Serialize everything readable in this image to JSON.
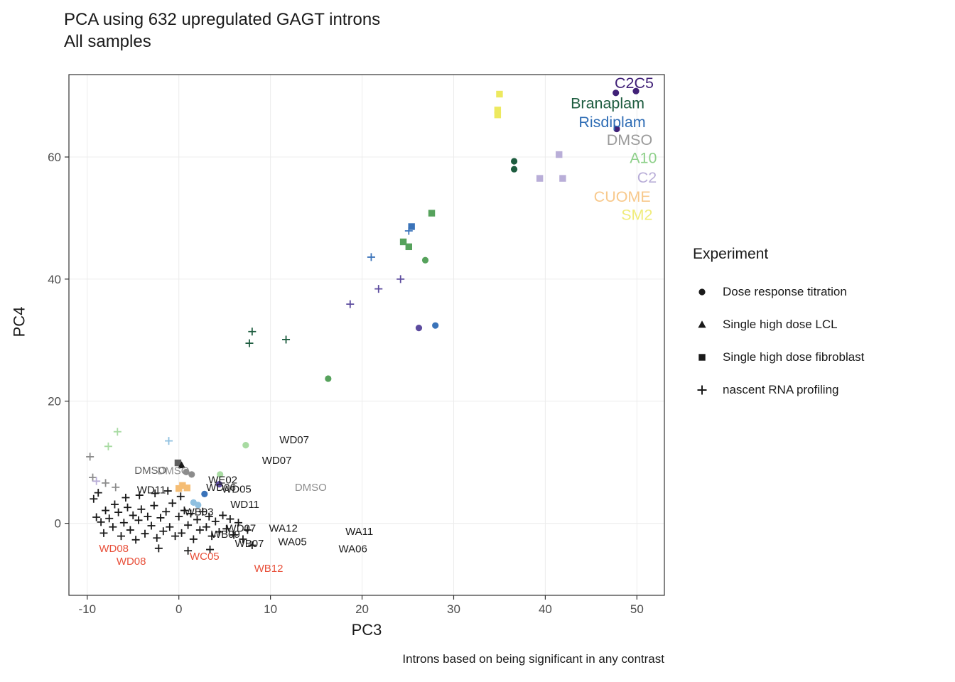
{
  "title": "PCA using 632 upregulated GAGT introns",
  "subtitle": "All samples",
  "caption": "Introns based on being significant in any contrast",
  "chart_data": {
    "type": "scatter",
    "xlabel": "PC3",
    "ylabel": "PC4",
    "xlim": [
      -12,
      53
    ],
    "ylim": [
      -11.8,
      73.5
    ],
    "xticks": [
      -10,
      0,
      10,
      20,
      30,
      40,
      50
    ],
    "yticks": [
      0,
      20,
      40,
      60
    ],
    "grid": true,
    "legend": {
      "title": "Experiment",
      "position": "right",
      "items": [
        {
          "shape": "circle",
          "label": "Dose response titration"
        },
        {
          "shape": "triangle",
          "label": "Single high dose LCL"
        },
        {
          "shape": "square",
          "label": "Single high dose fibroblast"
        },
        {
          "shape": "plus",
          "label": "nascent RNA profiling"
        }
      ]
    },
    "palette": {
      "black": "#1a1a1a",
      "gray": "#8c8c8c",
      "darkgray": "#5f5f5f",
      "red": "#e8503a",
      "midgreen": "#56a25c",
      "darkgreen": "#1d5c3f",
      "lightgreen": "#a8dba2",
      "blue": "#3a73b9",
      "steel": "#8fc0e0",
      "indigo": "#5c4b9e",
      "darkpurple": "#402077",
      "lightpurple": "#b9aed8",
      "orange": "#f5bd74",
      "yellow": "#ede95f"
    },
    "group_labels": [
      {
        "text": "C2C5",
        "x": 49.7,
        "y": 72.1,
        "color": "#402077"
      },
      {
        "text": "Branaplam",
        "x": 46.8,
        "y": 68.8,
        "color": "#1d5c3f"
      },
      {
        "text": "Risdiplam",
        "x": 47.3,
        "y": 65.7,
        "color": "#2f6db5"
      },
      {
        "text": "DMSO",
        "x": 49.2,
        "y": 62.8,
        "color": "#9b9b9b"
      },
      {
        "text": "A10",
        "x": 50.7,
        "y": 59.8,
        "color": "#8ed08a"
      },
      {
        "text": "C2",
        "x": 51.1,
        "y": 56.6,
        "color": "#b9aed8"
      },
      {
        "text": "CUOME",
        "x": 48.4,
        "y": 53.5,
        "color": "#f8c98c"
      },
      {
        "text": "SM2",
        "x": 50.0,
        "y": 50.5,
        "color": "#f0ec7a"
      }
    ],
    "point_labels": [
      {
        "text": "WD07",
        "x": 12.6,
        "y": 13.7,
        "color": "black"
      },
      {
        "text": "WD07",
        "x": 10.7,
        "y": 10.3,
        "color": "black"
      },
      {
        "text": "DMSO",
        "x": 14.4,
        "y": 5.9,
        "color": "gray"
      },
      {
        "text": "DMSO",
        "x": -3.1,
        "y": 8.7,
        "color": "darkgray"
      },
      {
        "text": "DMSO",
        "x": -0.6,
        "y": 8.6,
        "color": "gray"
      },
      {
        "text": "WE02",
        "x": 4.8,
        "y": 7.1,
        "color": "black"
      },
      {
        "text": "WD06",
        "x": 4.6,
        "y": 5.9,
        "color": "black"
      },
      {
        "text": "WD05",
        "x": 6.3,
        "y": 5.6,
        "color": "black"
      },
      {
        "text": "WD11",
        "x": -3.0,
        "y": 5.5,
        "color": "black"
      },
      {
        "text": "WD11",
        "x": 7.2,
        "y": 3.1,
        "color": "black"
      },
      {
        "text": "WB03",
        "x": 2.2,
        "y": 1.9,
        "color": "black"
      },
      {
        "text": "WD07",
        "x": 6.8,
        "y": -0.8,
        "color": "black"
      },
      {
        "text": "WA12",
        "x": 11.4,
        "y": -0.8,
        "color": "black"
      },
      {
        "text": "WA11",
        "x": 19.7,
        "y": -1.3,
        "color": "black"
      },
      {
        "text": "WB09",
        "x": 5.1,
        "y": -1.8,
        "color": "black"
      },
      {
        "text": "WA05",
        "x": 12.4,
        "y": -3.0,
        "color": "black"
      },
      {
        "text": "WB07",
        "x": 7.7,
        "y": -3.3,
        "color": "black"
      },
      {
        "text": "WA06",
        "x": 19.0,
        "y": -4.2,
        "color": "black"
      },
      {
        "text": "WB12",
        "x": 9.8,
        "y": -7.4,
        "color": "red"
      },
      {
        "text": "WD08",
        "x": -7.1,
        "y": -4.1,
        "color": "red"
      },
      {
        "text": "WD08",
        "x": -5.2,
        "y": -6.2,
        "color": "red"
      },
      {
        "text": "WC05",
        "x": 2.8,
        "y": -5.4,
        "color": "red"
      }
    ],
    "points": [
      {
        "x": 35.0,
        "y": 70.3,
        "shape": "square",
        "color": "yellow"
      },
      {
        "x": 34.8,
        "y": 67.7,
        "shape": "square",
        "color": "yellow"
      },
      {
        "x": 34.8,
        "y": 66.9,
        "shape": "square",
        "color": "yellow"
      },
      {
        "x": 47.7,
        "y": 70.5,
        "shape": "circle",
        "color": "darkpurple"
      },
      {
        "x": 49.9,
        "y": 70.8,
        "shape": "circle",
        "color": "darkpurple"
      },
      {
        "x": 47.8,
        "y": 64.6,
        "shape": "circle",
        "color": "darkpurple"
      },
      {
        "x": 36.6,
        "y": 59.3,
        "shape": "circle",
        "color": "darkgreen"
      },
      {
        "x": 36.6,
        "y": 58.0,
        "shape": "circle",
        "color": "darkgreen"
      },
      {
        "x": 39.4,
        "y": 56.5,
        "shape": "square",
        "color": "lightpurple"
      },
      {
        "x": 41.5,
        "y": 60.4,
        "shape": "square",
        "color": "lightpurple"
      },
      {
        "x": 41.9,
        "y": 56.5,
        "shape": "square",
        "color": "lightpurple"
      },
      {
        "x": 27.6,
        "y": 50.8,
        "shape": "square",
        "color": "midgreen"
      },
      {
        "x": 24.5,
        "y": 46.1,
        "shape": "square",
        "color": "midgreen"
      },
      {
        "x": 25.1,
        "y": 45.3,
        "shape": "square",
        "color": "midgreen"
      },
      {
        "x": 26.9,
        "y": 43.1,
        "shape": "circle",
        "color": "midgreen"
      },
      {
        "x": 16.3,
        "y": 23.7,
        "shape": "circle",
        "color": "midgreen"
      },
      {
        "x": 21.0,
        "y": 43.6,
        "shape": "plus",
        "color": "blue"
      },
      {
        "x": 25.1,
        "y": 47.9,
        "shape": "plus",
        "color": "blue"
      },
      {
        "x": 25.4,
        "y": 48.6,
        "shape": "square",
        "color": "blue"
      },
      {
        "x": 18.7,
        "y": 35.9,
        "shape": "plus",
        "color": "indigo"
      },
      {
        "x": 21.8,
        "y": 38.4,
        "shape": "plus",
        "color": "indigo"
      },
      {
        "x": 24.2,
        "y": 40.0,
        "shape": "plus",
        "color": "indigo"
      },
      {
        "x": 26.2,
        "y": 32.0,
        "shape": "circle",
        "color": "indigo"
      },
      {
        "x": 28.0,
        "y": 32.4,
        "shape": "circle",
        "color": "blue"
      },
      {
        "x": 7.7,
        "y": 29.5,
        "shape": "plus",
        "color": "darkgreen"
      },
      {
        "x": 8.0,
        "y": 31.4,
        "shape": "plus",
        "color": "darkgreen"
      },
      {
        "x": 11.7,
        "y": 30.1,
        "shape": "plus",
        "color": "darkgreen"
      },
      {
        "x": -6.7,
        "y": 15.0,
        "shape": "plus",
        "color": "lightgreen"
      },
      {
        "x": -7.7,
        "y": 12.6,
        "shape": "plus",
        "color": "lightgreen"
      },
      {
        "x": -1.1,
        "y": 13.5,
        "shape": "plus",
        "color": "steel"
      },
      {
        "x": -9.7,
        "y": 10.9,
        "shape": "plus",
        "color": "gray"
      },
      {
        "x": -9.4,
        "y": 7.5,
        "shape": "plus",
        "color": "gray"
      },
      {
        "x": -9.0,
        "y": 6.9,
        "shape": "plus",
        "color": "lightpurple"
      },
      {
        "x": -8.0,
        "y": 6.6,
        "shape": "plus",
        "color": "gray"
      },
      {
        "x": -6.9,
        "y": 5.9,
        "shape": "plus",
        "color": "gray"
      },
      {
        "x": 7.3,
        "y": 12.8,
        "shape": "circle",
        "color": "lightgreen"
      },
      {
        "x": 4.5,
        "y": 8.0,
        "shape": "circle",
        "color": "lightgreen"
      },
      {
        "x": -0.1,
        "y": 9.9,
        "shape": "square",
        "color": "darkgray"
      },
      {
        "x": 0.3,
        "y": 9.5,
        "shape": "triangle",
        "color": "black"
      },
      {
        "x": 0.8,
        "y": 8.4,
        "shape": "circle",
        "color": "gray"
      },
      {
        "x": 1.4,
        "y": 8.0,
        "shape": "circle",
        "color": "gray"
      },
      {
        "x": 0.4,
        "y": 6.2,
        "shape": "square",
        "color": "orange"
      },
      {
        "x": 0.9,
        "y": 5.8,
        "shape": "square",
        "color": "orange"
      },
      {
        "x": 0.0,
        "y": 5.7,
        "shape": "square",
        "color": "orange"
      },
      {
        "x": 4.4,
        "y": 6.4,
        "shape": "circle",
        "color": "indigo"
      },
      {
        "x": 1.6,
        "y": 3.4,
        "shape": "circle",
        "color": "steel"
      },
      {
        "x": 2.1,
        "y": 3.0,
        "shape": "circle",
        "color": "steel"
      },
      {
        "x": 2.8,
        "y": 4.8,
        "shape": "circle",
        "color": "blue"
      },
      {
        "x": -9.0,
        "y": 1.0,
        "shape": "plus",
        "color": "black"
      },
      {
        "x": -8.5,
        "y": 0.2,
        "shape": "plus",
        "color": "black"
      },
      {
        "x": -8.2,
        "y": -1.6,
        "shape": "plus",
        "color": "black"
      },
      {
        "x": -8.0,
        "y": 2.1,
        "shape": "plus",
        "color": "black"
      },
      {
        "x": -7.6,
        "y": 0.8,
        "shape": "plus",
        "color": "black"
      },
      {
        "x": -7.2,
        "y": -0.6,
        "shape": "plus",
        "color": "black"
      },
      {
        "x": -7.0,
        "y": 3.1,
        "shape": "plus",
        "color": "black"
      },
      {
        "x": -6.6,
        "y": 1.8,
        "shape": "plus",
        "color": "black"
      },
      {
        "x": -6.3,
        "y": -2.1,
        "shape": "plus",
        "color": "black"
      },
      {
        "x": -6.0,
        "y": 0.1,
        "shape": "plus",
        "color": "black"
      },
      {
        "x": -5.6,
        "y": 2.6,
        "shape": "plus",
        "color": "black"
      },
      {
        "x": -5.3,
        "y": -1.1,
        "shape": "plus",
        "color": "black"
      },
      {
        "x": -5.0,
        "y": 1.3,
        "shape": "plus",
        "color": "black"
      },
      {
        "x": -4.7,
        "y": -2.7,
        "shape": "plus",
        "color": "black"
      },
      {
        "x": -4.4,
        "y": 0.5,
        "shape": "plus",
        "color": "black"
      },
      {
        "x": -4.1,
        "y": 2.3,
        "shape": "plus",
        "color": "black"
      },
      {
        "x": -3.7,
        "y": -1.7,
        "shape": "plus",
        "color": "black"
      },
      {
        "x": -3.4,
        "y": 1.1,
        "shape": "plus",
        "color": "black"
      },
      {
        "x": -3.0,
        "y": -0.4,
        "shape": "plus",
        "color": "black"
      },
      {
        "x": -2.7,
        "y": 2.9,
        "shape": "plus",
        "color": "black"
      },
      {
        "x": -2.4,
        "y": -2.4,
        "shape": "plus",
        "color": "black"
      },
      {
        "x": -2.0,
        "y": 0.9,
        "shape": "plus",
        "color": "black"
      },
      {
        "x": -1.7,
        "y": -1.3,
        "shape": "plus",
        "color": "black"
      },
      {
        "x": -1.4,
        "y": 1.9,
        "shape": "plus",
        "color": "black"
      },
      {
        "x": -1.0,
        "y": -0.6,
        "shape": "plus",
        "color": "black"
      },
      {
        "x": -0.7,
        "y": 3.3,
        "shape": "plus",
        "color": "black"
      },
      {
        "x": -0.4,
        "y": -2.1,
        "shape": "plus",
        "color": "black"
      },
      {
        "x": 0.0,
        "y": 1.1,
        "shape": "plus",
        "color": "black"
      },
      {
        "x": 0.3,
        "y": -1.6,
        "shape": "plus",
        "color": "black"
      },
      {
        "x": 0.6,
        "y": 2.1,
        "shape": "plus",
        "color": "black"
      },
      {
        "x": 1.0,
        "y": -0.3,
        "shape": "plus",
        "color": "black"
      },
      {
        "x": 1.3,
        "y": 1.6,
        "shape": "plus",
        "color": "black"
      },
      {
        "x": 1.6,
        "y": -2.6,
        "shape": "plus",
        "color": "black"
      },
      {
        "x": 2.0,
        "y": 0.6,
        "shape": "plus",
        "color": "black"
      },
      {
        "x": 2.3,
        "y": -1.1,
        "shape": "plus",
        "color": "black"
      },
      {
        "x": 2.6,
        "y": 1.9,
        "shape": "plus",
        "color": "black"
      },
      {
        "x": 3.0,
        "y": -0.6,
        "shape": "plus",
        "color": "black"
      },
      {
        "x": 3.3,
        "y": 1.1,
        "shape": "plus",
        "color": "black"
      },
      {
        "x": 3.6,
        "y": -2.1,
        "shape": "plus",
        "color": "black"
      },
      {
        "x": 4.0,
        "y": 0.3,
        "shape": "plus",
        "color": "black"
      },
      {
        "x": 4.4,
        "y": -1.4,
        "shape": "plus",
        "color": "black"
      },
      {
        "x": 4.8,
        "y": 1.3,
        "shape": "plus",
        "color": "black"
      },
      {
        "x": 5.2,
        "y": -0.9,
        "shape": "plus",
        "color": "black"
      },
      {
        "x": 5.6,
        "y": 0.7,
        "shape": "plus",
        "color": "black"
      },
      {
        "x": 6.0,
        "y": -1.9,
        "shape": "plus",
        "color": "black"
      },
      {
        "x": 6.5,
        "y": 0.1,
        "shape": "plus",
        "color": "black"
      },
      {
        "x": 7.0,
        "y": -2.6,
        "shape": "plus",
        "color": "black"
      },
      {
        "x": 7.5,
        "y": -1.1,
        "shape": "plus",
        "color": "black"
      },
      {
        "x": 8.0,
        "y": -3.6,
        "shape": "plus",
        "color": "black"
      },
      {
        "x": -5.8,
        "y": 4.2,
        "shape": "plus",
        "color": "black"
      },
      {
        "x": -4.3,
        "y": 4.6,
        "shape": "plus",
        "color": "black"
      },
      {
        "x": -2.6,
        "y": 4.9,
        "shape": "plus",
        "color": "black"
      },
      {
        "x": -1.2,
        "y": 5.3,
        "shape": "plus",
        "color": "black"
      },
      {
        "x": 0.2,
        "y": 4.4,
        "shape": "plus",
        "color": "black"
      },
      {
        "x": -9.3,
        "y": 4.0,
        "shape": "plus",
        "color": "black"
      },
      {
        "x": -8.8,
        "y": 5.0,
        "shape": "plus",
        "color": "black"
      },
      {
        "x": -2.2,
        "y": -4.1,
        "shape": "plus",
        "color": "black"
      },
      {
        "x": 1.0,
        "y": -4.5,
        "shape": "plus",
        "color": "black"
      },
      {
        "x": 3.4,
        "y": -4.3,
        "shape": "plus",
        "color": "black"
      }
    ]
  }
}
